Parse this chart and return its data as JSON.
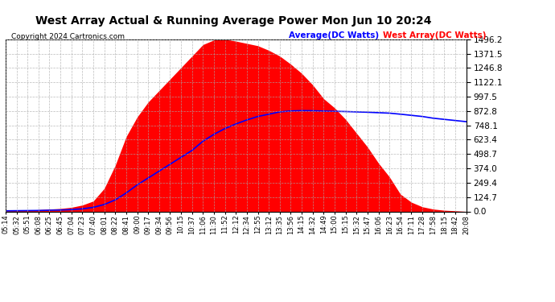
{
  "title": "West Array Actual & Running Average Power Mon Jun 10 20:24",
  "copyright": "Copyright 2024 Cartronics.com",
  "legend_avg": "Average(DC Watts)",
  "legend_west": "West Array(DC Watts)",
  "legend_avg_color": "blue",
  "legend_west_color": "red",
  "fill_color": "red",
  "line_color": "blue",
  "background_color": "#ffffff",
  "grid_color": "#aaaaaa",
  "yticks": [
    0.0,
    124.7,
    249.4,
    374.0,
    498.7,
    623.4,
    748.1,
    872.8,
    997.5,
    1122.1,
    1246.8,
    1371.5,
    1496.2
  ],
  "ymax": 1496.2,
  "ymin": 0.0,
  "xtick_labels": [
    "05:14",
    "05:32",
    "05:51",
    "06:08",
    "06:25",
    "06:45",
    "07:04",
    "07:23",
    "07:40",
    "08:01",
    "08:22",
    "08:41",
    "09:00",
    "09:17",
    "09:34",
    "09:56",
    "10:15",
    "10:37",
    "11:06",
    "11:30",
    "11:52",
    "12:12",
    "12:34",
    "12:55",
    "13:12",
    "13:35",
    "13:56",
    "14:15",
    "14:32",
    "14:49",
    "15:00",
    "15:15",
    "15:32",
    "15:47",
    "16:06",
    "16:23",
    "16:54",
    "17:11",
    "17:28",
    "17:58",
    "18:15",
    "18:42",
    "20:08"
  ],
  "west_array_values": [
    5,
    8,
    10,
    15,
    20,
    25,
    35,
    55,
    90,
    200,
    400,
    650,
    820,
    950,
    1050,
    1150,
    1250,
    1350,
    1450,
    1490,
    1496,
    1480,
    1460,
    1440,
    1400,
    1350,
    1280,
    1200,
    1100,
    980,
    900,
    800,
    680,
    560,
    420,
    300,
    150,
    80,
    40,
    20,
    10,
    5,
    0
  ],
  "avg_values": [
    5,
    6,
    7,
    8,
    10,
    12,
    16,
    22,
    35,
    60,
    100,
    160,
    230,
    290,
    350,
    410,
    470,
    530,
    610,
    670,
    720,
    760,
    795,
    825,
    845,
    865,
    873,
    876,
    875,
    872,
    870,
    868,
    865,
    862,
    858,
    854,
    845,
    835,
    825,
    810,
    800,
    790,
    780
  ]
}
